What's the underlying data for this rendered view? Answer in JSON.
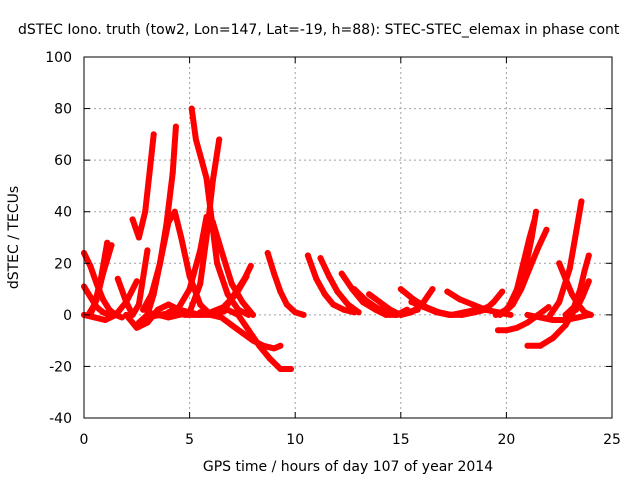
{
  "chart_data": {
    "type": "line",
    "title": "dSTEC Iono. truth (tow2, Lon=147, Lat=-19, h=88): STEC-STEC_elemax in phase cont",
    "xlabel": "GPS time / hours of day 107 of year 2014",
    "ylabel": "dSTEC  / TECUs",
    "xlim": [
      0,
      25
    ],
    "ylim": [
      -40,
      100
    ],
    "xticks": [
      0,
      5,
      10,
      15,
      20,
      25
    ],
    "yticks": [
      -40,
      -20,
      0,
      20,
      40,
      60,
      80,
      100
    ],
    "grid": true,
    "color": "#ff0000",
    "series": [
      {
        "x": [
          0.0,
          0.3,
          0.6,
          0.9,
          1.2,
          1.5,
          1.8
        ],
        "y": [
          24,
          19,
          12,
          6,
          2,
          0,
          -1
        ]
      },
      {
        "x": [
          0.0,
          0.3,
          0.6,
          0.9,
          1.2
        ],
        "y": [
          11,
          7,
          3,
          1,
          0
        ]
      },
      {
        "x": [
          0.2,
          0.5,
          0.8,
          1.1
        ],
        "y": [
          0,
          4,
          14,
          28
        ]
      },
      {
        "x": [
          0.3,
          0.6,
          0.9,
          1.3
        ],
        "y": [
          0,
          6,
          16,
          27
        ]
      },
      {
        "x": [
          0.0,
          0.5,
          1.0,
          1.5,
          2.0,
          2.5
        ],
        "y": [
          0,
          -1,
          -2,
          0,
          5,
          13
        ]
      },
      {
        "x": [
          1.6,
          2.0,
          2.3,
          2.6,
          3.0
        ],
        "y": [
          14,
          5,
          0,
          4,
          25
        ]
      },
      {
        "x": [
          2.3,
          2.6,
          2.9,
          3.1,
          3.3
        ],
        "y": [
          37,
          30,
          40,
          55,
          70
        ]
      },
      {
        "x": [
          2.6,
          3.0,
          3.3,
          3.6,
          3.9,
          4.2,
          4.35
        ],
        "y": [
          -3,
          0,
          8,
          20,
          35,
          55,
          73
        ]
      },
      {
        "x": [
          2.0,
          2.5,
          3.0,
          3.5,
          4.0,
          4.5,
          5.0,
          5.5,
          6.0
        ],
        "y": [
          0,
          -5,
          -3,
          2,
          4,
          2,
          1,
          0,
          0
        ]
      },
      {
        "x": [
          2.8,
          3.2,
          3.6,
          4.0,
          4.3,
          4.6,
          5.0,
          5.5,
          6.0
        ],
        "y": [
          2,
          8,
          20,
          36,
          40,
          30,
          15,
          4,
          0
        ]
      },
      {
        "x": [
          3.0,
          3.5,
          4.0,
          4.5,
          5.0,
          5.5,
          5.8,
          6.1,
          6.4
        ],
        "y": [
          1,
          0,
          -1,
          0,
          1,
          12,
          30,
          52,
          68
        ]
      },
      {
        "x": [
          5.1,
          5.3,
          5.5,
          5.8,
          6.0,
          6.3,
          6.8,
          7.3,
          7.8
        ],
        "y": [
          80,
          68,
          62,
          53,
          40,
          20,
          8,
          2,
          0
        ]
      },
      {
        "x": [
          4.0,
          4.5,
          5.0,
          5.5,
          5.8,
          6.1,
          6.5,
          7.0,
          7.5,
          8.0
        ],
        "y": [
          1,
          3,
          10,
          25,
          38,
          36,
          25,
          12,
          5,
          0
        ]
      },
      {
        "x": [
          3.0,
          3.6,
          4.2,
          4.8,
          5.4,
          6.0,
          6.6,
          7.2,
          7.7
        ],
        "y": [
          -1,
          0,
          1,
          0,
          0,
          1,
          3,
          8,
          15
        ]
      },
      {
        "x": [
          5.5,
          6.2,
          6.8,
          7.3,
          7.8,
          8.3,
          8.8,
          9.3,
          9.8
        ],
        "y": [
          1,
          0,
          2,
          0,
          -6,
          -12,
          -17,
          -21,
          -21
        ]
      },
      {
        "x": [
          6.0,
          6.5,
          7.0,
          7.5,
          8.0,
          8.5,
          9.0,
          9.3
        ],
        "y": [
          0,
          -1,
          -4,
          -7,
          -10,
          -12,
          -13,
          -12
        ]
      },
      {
        "x": [
          6.4,
          6.8,
          7.2,
          7.6,
          7.9
        ],
        "y": [
          1,
          4,
          9,
          14,
          19
        ]
      },
      {
        "x": [
          8.7,
          9.0,
          9.3,
          9.6,
          10.0,
          10.4
        ],
        "y": [
          24,
          16,
          9,
          4,
          1,
          0
        ]
      },
      {
        "x": [
          10.6,
          11.0,
          11.4,
          11.8,
          12.3,
          12.8
        ],
        "y": [
          23,
          14,
          8,
          4,
          2,
          1
        ]
      },
      {
        "x": [
          11.2,
          11.6,
          12.0,
          12.5,
          13.0
        ],
        "y": [
          22,
          15,
          9,
          4,
          1
        ]
      },
      {
        "x": [
          12.2,
          12.7,
          13.2,
          13.8,
          14.3,
          14.8,
          15.3,
          15.8
        ],
        "y": [
          16,
          10,
          5,
          2,
          0,
          0,
          1,
          2
        ]
      },
      {
        "x": [
          12.8,
          13.3,
          13.8,
          14.3,
          14.8,
          15.3
        ],
        "y": [
          10,
          6,
          3,
          1,
          0,
          2
        ]
      },
      {
        "x": [
          13.5,
          14.0,
          14.5,
          15.0,
          15.5,
          16.0,
          16.5
        ],
        "y": [
          8,
          5,
          2,
          0,
          1,
          4,
          10
        ]
      },
      {
        "x": [
          15.0,
          15.6,
          16.2,
          16.8,
          17.4,
          18.0,
          18.6
        ],
        "y": [
          10,
          6,
          3,
          1,
          0,
          1,
          2
        ]
      },
      {
        "x": [
          15.5,
          16.1,
          16.7,
          17.3,
          17.9,
          18.5,
          19.1
        ],
        "y": [
          5,
          3,
          1,
          0,
          0,
          1,
          3
        ]
      },
      {
        "x": [
          17.2,
          17.8,
          18.4,
          19.0,
          19.6,
          20.2
        ],
        "y": [
          9,
          6,
          4,
          2,
          1,
          0
        ]
      },
      {
        "x": [
          18.5,
          19.0,
          19.4,
          19.8
        ],
        "y": [
          1,
          2,
          5,
          9
        ]
      },
      {
        "x": [
          19.5,
          20.0,
          20.5,
          20.9,
          21.2,
          21.4
        ],
        "y": [
          0,
          2,
          8,
          18,
          30,
          40
        ]
      },
      {
        "x": [
          19.7,
          20.1,
          20.5,
          20.8,
          21.1,
          21.3
        ],
        "y": [
          0,
          3,
          10,
          20,
          30,
          36
        ]
      },
      {
        "x": [
          19.9,
          20.3,
          20.7,
          21.1,
          21.5,
          21.9
        ],
        "y": [
          1,
          4,
          10,
          18,
          26,
          33
        ]
      },
      {
        "x": [
          19.6,
          20.0,
          20.5,
          21.0,
          21.5,
          22.0
        ],
        "y": [
          -6,
          -6,
          -5,
          -3,
          0,
          3
        ]
      },
      {
        "x": [
          21.0,
          21.6,
          22.2,
          22.8,
          23.3
        ],
        "y": [
          -12,
          -12,
          -9,
          -4,
          3
        ]
      },
      {
        "x": [
          21.0,
          21.6,
          22.2,
          22.8,
          23.4,
          23.9
        ],
        "y": [
          0,
          -1,
          -2,
          -2,
          -1,
          0
        ]
      },
      {
        "x": [
          22.0,
          22.5,
          23.0,
          23.3,
          23.55
        ],
        "y": [
          -1,
          5,
          18,
          32,
          44
        ]
      },
      {
        "x": [
          22.5,
          22.8,
          23.1,
          23.4,
          23.7,
          24.0
        ],
        "y": [
          20,
          14,
          8,
          4,
          1,
          0
        ]
      },
      {
        "x": [
          22.8,
          23.2,
          23.5,
          23.7,
          23.9
        ],
        "y": [
          0,
          3,
          10,
          17,
          23
        ]
      },
      {
        "x": [
          22.9,
          23.3,
          23.6,
          23.9
        ],
        "y": [
          0,
          2,
          7,
          13
        ]
      }
    ]
  }
}
